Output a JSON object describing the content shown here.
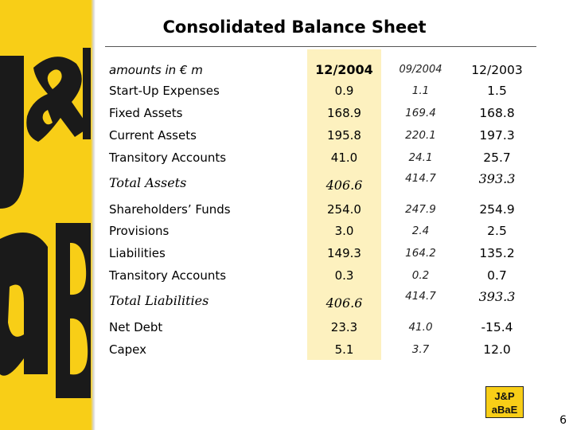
{
  "title": "Consolidated Balance Sheet",
  "header": {
    "label": "amounts in € m",
    "col1": "12/2004",
    "col2": "09/2004",
    "col3": "12/2003"
  },
  "rows": [
    {
      "label": "Start-Up Expenses",
      "c1": "0.9",
      "c2": "1.1",
      "c3": "1.5"
    },
    {
      "label": "Fixed Assets",
      "c1": "168.9",
      "c2": "169.4",
      "c3": "168.8"
    },
    {
      "label": "Current Assets",
      "c1": "195.8",
      "c2": "220.1",
      "c3": "197.3"
    },
    {
      "label": "Transitory Accounts",
      "c1": "41.0",
      "c2": "24.1",
      "c3": "25.7"
    },
    {
      "label": "Total Assets",
      "c1": "406.6",
      "c2": "414.7",
      "c3": "393.3"
    },
    {
      "label": "Shareholders’ Funds",
      "c1": "254.0",
      "c2": "247.9",
      "c3": "254.9"
    },
    {
      "label": "Provisions",
      "c1": "3.0",
      "c2": "2.4",
      "c3": "2.5"
    },
    {
      "label": "Liabilities",
      "c1": "149.3",
      "c2": "164.2",
      "c3": "135.2"
    },
    {
      "label": "Transitory Accounts",
      "c1": "0.3",
      "c2": "0.2",
      "c3": "0.7"
    },
    {
      "label": "Total Liabilities",
      "c1": "406.6",
      "c2": "414.7",
      "c3": "393.3"
    },
    {
      "label": "Net Debt",
      "c1": "23.3",
      "c2": "41.0",
      "c3": "-15.4"
    },
    {
      "label": "Capex",
      "c1": "5.1",
      "c2": "3.7",
      "c3": "12.0"
    }
  ],
  "brand": {
    "logo_text": "J&P aBaE",
    "accent": "#f8ce17"
  },
  "page_number": "6"
}
